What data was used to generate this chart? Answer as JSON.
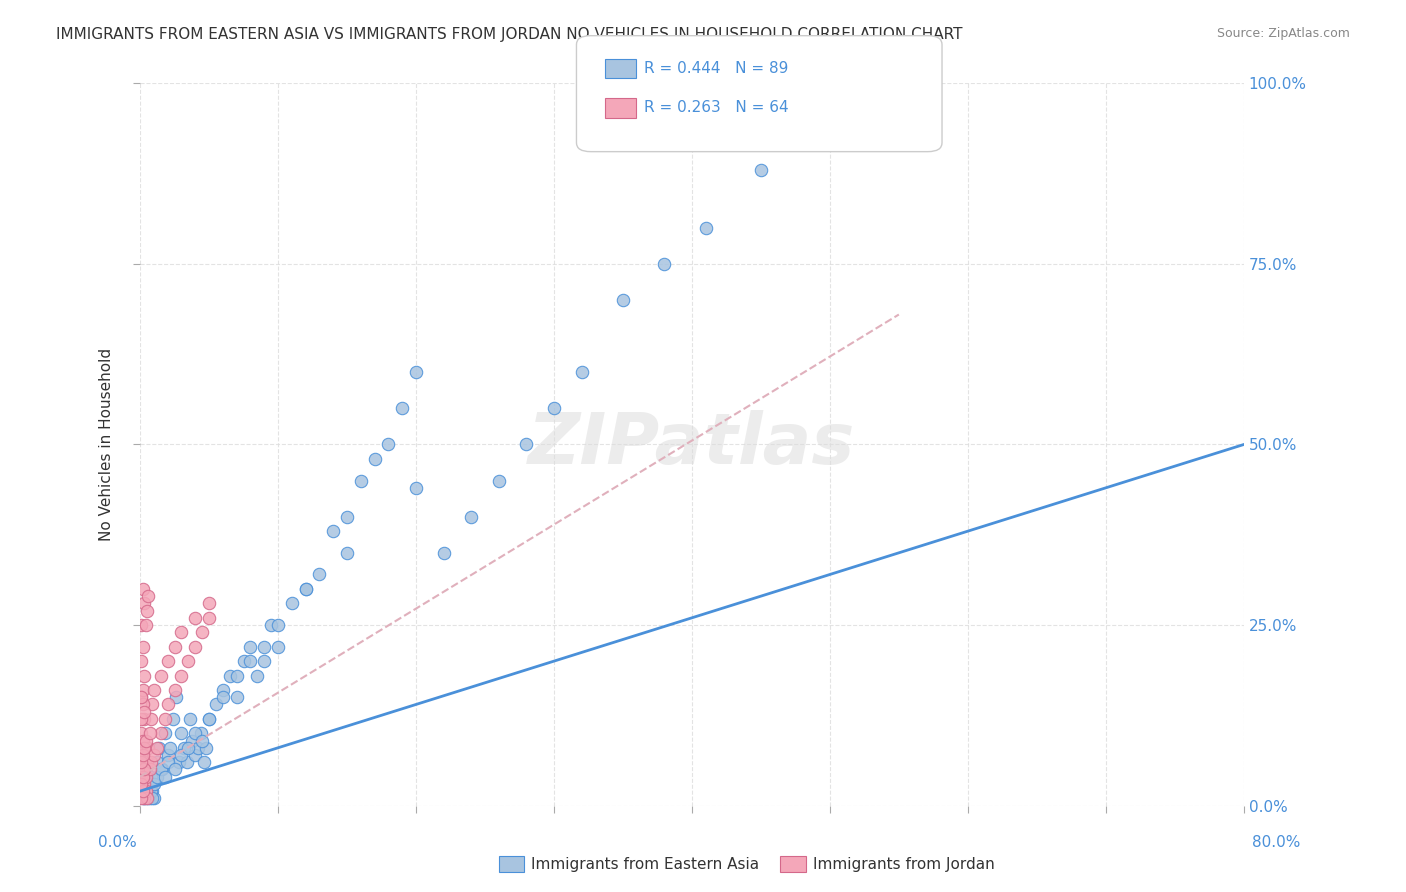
{
  "title": "IMMIGRANTS FROM EASTERN ASIA VS IMMIGRANTS FROM JORDAN NO VEHICLES IN HOUSEHOLD CORRELATION CHART",
  "source": "Source: ZipAtlas.com",
  "ylabel": "No Vehicles in Household",
  "legend1_R": "R = 0.444",
  "legend1_N": "N = 89",
  "legend2_R": "R = 0.263",
  "legend2_N": "N = 64",
  "blue_color": "#a8c4e0",
  "pink_color": "#f4a7b9",
  "blue_edge_color": "#4a90d9",
  "pink_edge_color": "#d4688a",
  "blue_line_color": "#4a90d9",
  "pink_line_color": "#e0b0bc",
  "blue_scatter_x": [
    0.001,
    0.002,
    0.003,
    0.004,
    0.005,
    0.006,
    0.007,
    0.008,
    0.009,
    0.01,
    0.012,
    0.014,
    0.016,
    0.018,
    0.02,
    0.022,
    0.024,
    0.026,
    0.028,
    0.03,
    0.032,
    0.034,
    0.036,
    0.038,
    0.04,
    0.042,
    0.044,
    0.046,
    0.048,
    0.05,
    0.055,
    0.06,
    0.065,
    0.07,
    0.075,
    0.08,
    0.085,
    0.09,
    0.095,
    0.1,
    0.11,
    0.12,
    0.13,
    0.14,
    0.15,
    0.16,
    0.17,
    0.18,
    0.19,
    0.2,
    0.22,
    0.24,
    0.26,
    0.28,
    0.3,
    0.32,
    0.35,
    0.38,
    0.41,
    0.45,
    0.001,
    0.002,
    0.003,
    0.004,
    0.005,
    0.006,
    0.005,
    0.007,
    0.008,
    0.009,
    0.01,
    0.012,
    0.015,
    0.018,
    0.02,
    0.025,
    0.03,
    0.035,
    0.04,
    0.045,
    0.05,
    0.06,
    0.07,
    0.08,
    0.09,
    0.1,
    0.12,
    0.15,
    0.2
  ],
  "blue_scatter_y": [
    0.04,
    0.02,
    0.01,
    0.05,
    0.03,
    0.02,
    0.01,
    0.04,
    0.02,
    0.01,
    0.06,
    0.08,
    0.05,
    0.1,
    0.07,
    0.08,
    0.12,
    0.15,
    0.06,
    0.1,
    0.08,
    0.06,
    0.12,
    0.09,
    0.07,
    0.08,
    0.1,
    0.06,
    0.08,
    0.12,
    0.14,
    0.16,
    0.18,
    0.15,
    0.2,
    0.22,
    0.18,
    0.2,
    0.25,
    0.22,
    0.28,
    0.3,
    0.32,
    0.38,
    0.4,
    0.45,
    0.48,
    0.5,
    0.55,
    0.6,
    0.35,
    0.4,
    0.45,
    0.5,
    0.55,
    0.6,
    0.7,
    0.75,
    0.8,
    0.88,
    0.02,
    0.01,
    0.03,
    0.01,
    0.02,
    0.01,
    0.02,
    0.03,
    0.02,
    0.01,
    0.03,
    0.04,
    0.05,
    0.04,
    0.06,
    0.05,
    0.07,
    0.08,
    0.1,
    0.09,
    0.12,
    0.15,
    0.18,
    0.2,
    0.22,
    0.25,
    0.3,
    0.35,
    0.44
  ],
  "pink_scatter_x": [
    0.001,
    0.002,
    0.003,
    0.001,
    0.002,
    0.003,
    0.004,
    0.005,
    0.001,
    0.002,
    0.003,
    0.004,
    0.001,
    0.002,
    0.003,
    0.005,
    0.006,
    0.007,
    0.008,
    0.01,
    0.012,
    0.015,
    0.018,
    0.02,
    0.025,
    0.03,
    0.035,
    0.04,
    0.045,
    0.05,
    0.001,
    0.002,
    0.001,
    0.002,
    0.003,
    0.001,
    0.002,
    0.003,
    0.004,
    0.001,
    0.002,
    0.003,
    0.001,
    0.002,
    0.001,
    0.003,
    0.002,
    0.004,
    0.005,
    0.006,
    0.007,
    0.008,
    0.009,
    0.01,
    0.015,
    0.02,
    0.025,
    0.03,
    0.04,
    0.05,
    0.001,
    0.002,
    0.001,
    0.003
  ],
  "pink_scatter_y": [
    0.04,
    0.02,
    0.01,
    0.05,
    0.06,
    0.03,
    0.02,
    0.01,
    0.07,
    0.08,
    0.05,
    0.04,
    0.1,
    0.09,
    0.12,
    0.06,
    0.08,
    0.05,
    0.06,
    0.07,
    0.08,
    0.1,
    0.12,
    0.14,
    0.16,
    0.18,
    0.2,
    0.22,
    0.24,
    0.26,
    0.01,
    0.02,
    0.03,
    0.04,
    0.05,
    0.06,
    0.07,
    0.08,
    0.09,
    0.15,
    0.16,
    0.18,
    0.2,
    0.22,
    0.25,
    0.28,
    0.3,
    0.25,
    0.27,
    0.29,
    0.1,
    0.12,
    0.14,
    0.16,
    0.18,
    0.2,
    0.22,
    0.24,
    0.26,
    0.28,
    0.12,
    0.14,
    0.15,
    0.13
  ],
  "blue_line_x0": 0.0,
  "blue_line_y0": 0.02,
  "blue_line_x1": 0.8,
  "blue_line_y1": 0.5,
  "pink_line_x0": 0.0,
  "pink_line_y0": 0.04,
  "pink_line_x1": 0.55,
  "pink_line_y1": 0.68,
  "xlim": [
    0.0,
    0.8
  ],
  "ylim": [
    0.0,
    1.0
  ],
  "background_color": "#ffffff",
  "grid_color": "#dddddd"
}
